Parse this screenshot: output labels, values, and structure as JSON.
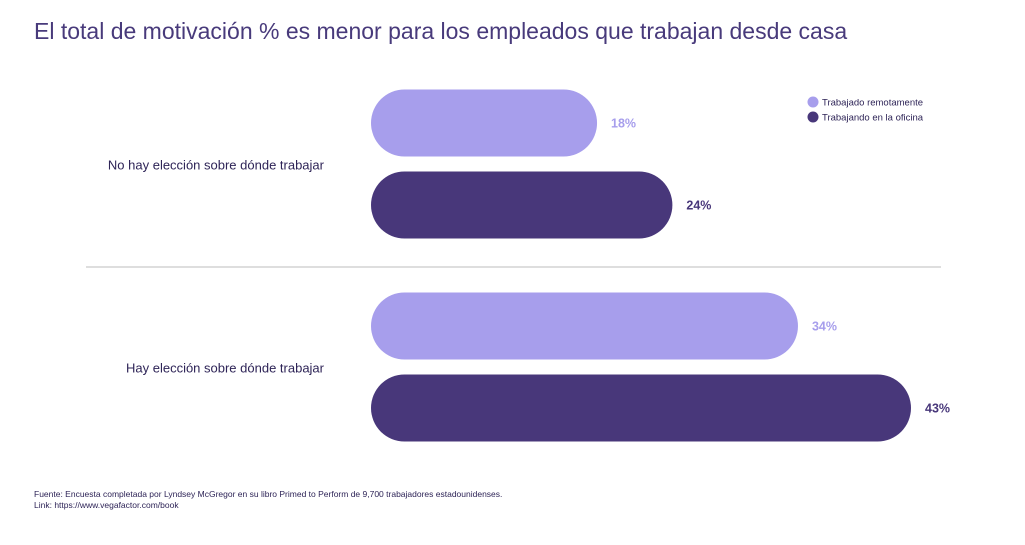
{
  "colors": {
    "title": "#483A7B",
    "text": "#2E2457",
    "remote": "#A79EEC",
    "office": "#48377A",
    "divider": "#BDBDBD"
  },
  "chart_data": {
    "type": "bar",
    "orientation": "horizontal",
    "title": "El total de motivación % es menor para los empleados que trabajan desde casa",
    "categories": [
      "No hay elección sobre dónde trabajar",
      "Hay elección sobre dónde trabajar"
    ],
    "series": [
      {
        "name": "Trabajado remotamente",
        "color": "#A79EEC",
        "values": [
          18,
          34
        ],
        "labels": [
          "18%",
          "34%"
        ]
      },
      {
        "name": "Trabajando en la oficina",
        "color": "#48377A",
        "values": [
          24,
          43
        ],
        "labels": [
          "24%",
          "43%"
        ]
      }
    ],
    "unit": "%",
    "legend_position": "top-right",
    "grid": false
  },
  "footer": {
    "source": "Fuente:   Encuesta completada por Lyndsey McGregor en su libro Primed to Perform de 9,700 trabajadores estadounidenses.",
    "link": "Link: https://www.vegafactor.com/book"
  }
}
